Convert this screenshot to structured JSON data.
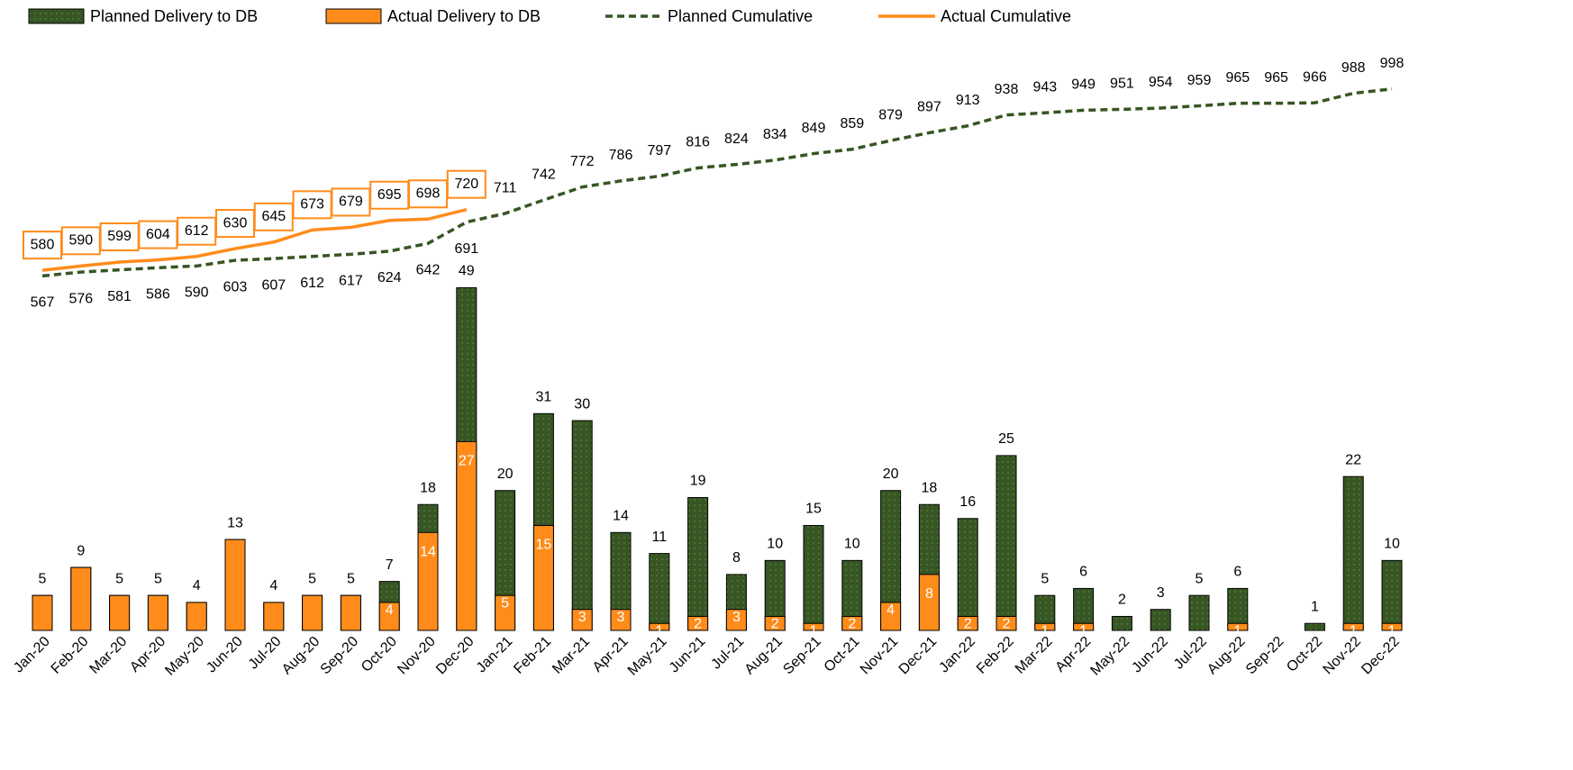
{
  "chart_data": {
    "type": "bar",
    "categories": [
      "Jan-20",
      "Feb-20",
      "Mar-20",
      "Apr-20",
      "May-20",
      "Jun-20",
      "Jul-20",
      "Aug-20",
      "Sep-20",
      "Oct-20",
      "Nov-20",
      "Dec-20",
      "Jan-21",
      "Feb-21",
      "Mar-21",
      "Apr-21",
      "May-21",
      "Jun-21",
      "Jul-21",
      "Aug-21",
      "Sep-21",
      "Oct-21",
      "Nov-21",
      "Dec-21",
      "Jan-22",
      "Feb-22",
      "Mar-22",
      "Apr-22",
      "May-22",
      "Jun-22",
      "Jul-22",
      "Aug-22",
      "Sep-22",
      "Oct-22",
      "Nov-22",
      "Dec-22"
    ],
    "ylim": [
      0,
      85
    ],
    "y2lim": [
      -250,
      1120
    ],
    "grid": true,
    "series": [
      {
        "name": "Planned Delivery to DB",
        "type": "bar",
        "color": "#375623",
        "values": [
          5,
          9,
          5,
          5,
          4,
          13,
          4,
          5,
          5,
          7,
          18,
          49,
          20,
          31,
          30,
          14,
          11,
          19,
          8,
          10,
          15,
          10,
          20,
          18,
          16,
          25,
          5,
          6,
          2,
          3,
          5,
          6,
          null,
          1,
          22,
          10
        ]
      },
      {
        "name": "Actual Delivery to DB",
        "type": "bar",
        "color": "#ff8c1a",
        "values": [
          5,
          9,
          5,
          5,
          4,
          13,
          4,
          5,
          5,
          4,
          14,
          27,
          5,
          15,
          3,
          3,
          1,
          2,
          3,
          2,
          1,
          2,
          4,
          8,
          2,
          2,
          1,
          1,
          null,
          null,
          null,
          1,
          null,
          null,
          1,
          1
        ]
      },
      {
        "name": "Planned Cumulative",
        "type": "line",
        "axis": "y2",
        "color": "#375623",
        "dashed": true,
        "values": [
          567,
          576,
          581,
          586,
          590,
          603,
          607,
          612,
          617,
          624,
          642,
          691,
          711,
          742,
          772,
          786,
          797,
          816,
          824,
          834,
          849,
          859,
          879,
          897,
          913,
          938,
          943,
          949,
          951,
          954,
          959,
          965,
          965,
          966,
          988,
          998
        ]
      },
      {
        "name": "Actual Cumulative",
        "type": "line",
        "axis": "y2",
        "color": "#ff8c1a",
        "dashed": false,
        "values": [
          580,
          590,
          599,
          604,
          612,
          630,
          645,
          673,
          679,
          695,
          698,
          720,
          null,
          null,
          null,
          null,
          null,
          null,
          null,
          null,
          null,
          null,
          null,
          null,
          null,
          null,
          null,
          null,
          null,
          null,
          null,
          null,
          null,
          null,
          null,
          null
        ]
      }
    ]
  }
}
